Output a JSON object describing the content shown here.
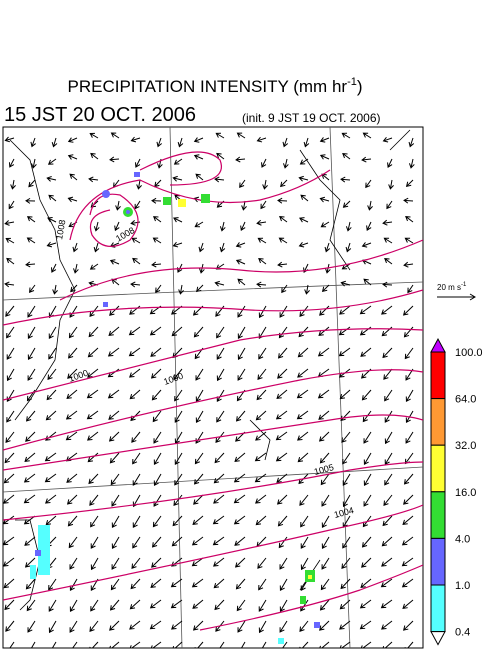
{
  "header": {
    "title": "PRECIPITATION INTENSITY (mm hr",
    "title_exponent": "-1",
    "title_close": ")",
    "valid_time": "15 JST 20 OCT. 2006",
    "init_time": "(init. 9 JST 19 OCT. 2006)"
  },
  "reference_vector": {
    "label": "20 m s",
    "exponent": "-1"
  },
  "isobar_labels": [
    "1008",
    "1008",
    "1000",
    "1000",
    "1004",
    "1005"
  ],
  "colorbar": {
    "labels": [
      "100.0",
      "64.0",
      "32.0",
      "16.0",
      "4.0",
      "1.0",
      "0.4"
    ],
    "colors": [
      "#c000ff",
      "#ff0000",
      "#ff9933",
      "#ffff33",
      "#33dd33",
      "#6666ff",
      "#55ffff",
      "#ffffff"
    ]
  }
}
